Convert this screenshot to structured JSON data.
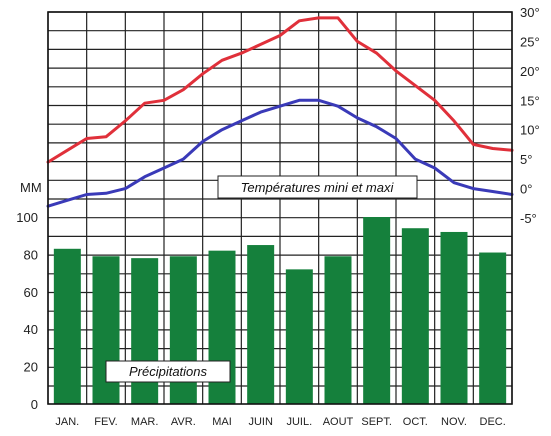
{
  "chart_data": {
    "type": "bar+line",
    "categories": [
      "JAN.",
      "FEV.",
      "MAR.",
      "AVR.",
      "MAI",
      "JUIN",
      "JUIL.",
      "AOUT",
      "SEPT.",
      "OCT.",
      "NOV.",
      "DEC."
    ],
    "precip_axis_unit": "MM",
    "precip_ticks": [
      "0",
      "20",
      "40",
      "60",
      "80",
      "100"
    ],
    "precip_ylim": [
      0,
      100
    ],
    "temp_ticks": [
      "-5°",
      "0°",
      "5°",
      "10°",
      "15°",
      "20°",
      "25°",
      "30°"
    ],
    "temp_ylim": [
      -5,
      30
    ],
    "series": [
      {
        "name": "Précipitations",
        "kind": "bar",
        "values": [
          83,
          79,
          78,
          79,
          82,
          85,
          72,
          79,
          100,
          94,
          92,
          81
        ],
        "color": "#15803c"
      },
      {
        "name": "Températures maxi",
        "kind": "line",
        "x": [
          0,
          0.5,
          1,
          1.5,
          2,
          2.5,
          3,
          3.5,
          4,
          4.5,
          5,
          5.5,
          6,
          6.5,
          7,
          7.5,
          8,
          8.5,
          9,
          9.5,
          10,
          10.5,
          11,
          11.5,
          12
        ],
        "values": [
          4.5,
          6.5,
          8.5,
          8.8,
          11.5,
          14.5,
          15,
          16.8,
          19.5,
          21.8,
          23,
          24.5,
          26,
          28.5,
          29,
          29,
          25,
          23,
          20,
          17.5,
          15,
          11.5,
          7.5,
          6.8,
          6.5
        ],
        "color": "#e0303a"
      },
      {
        "name": "Températures mini",
        "kind": "line",
        "x": [
          0,
          0.5,
          1,
          1.5,
          2,
          2.5,
          3,
          3.5,
          4,
          4.5,
          5,
          5.5,
          6,
          6.5,
          7,
          7.5,
          8,
          8.5,
          9,
          9.5,
          10,
          10.5,
          11,
          11.5,
          12
        ],
        "values": [
          -3,
          -2,
          -1,
          -0.8,
          0,
          2,
          3.5,
          5,
          8,
          10,
          11.5,
          13,
          14,
          15,
          15,
          14,
          12,
          10.5,
          8.5,
          5,
          3.5,
          1,
          0,
          -0.5,
          -1
        ],
        "color": "#3a3ab8"
      }
    ],
    "labels": {
      "temperatures": "Températures mini et maxi",
      "precipitations": "Précipitations"
    }
  }
}
